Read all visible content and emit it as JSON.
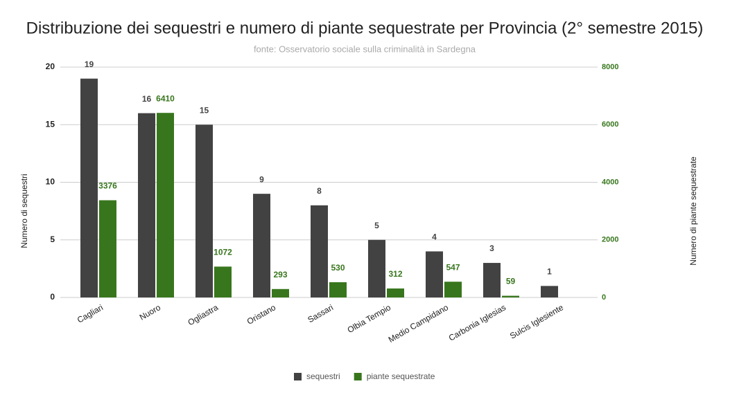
{
  "chart_data": {
    "type": "bar",
    "title": "Distribuzione dei sequestri e numero di piante sequestrate per Provincia (2° semestre 2015)",
    "subtitle": "fonte: Osservatorio sociale sulla criminalità in Sardegna",
    "y_label": "Numero di sequestri",
    "y2_label": "Numero di piante sequestrate",
    "categories": [
      "Cagliari",
      "Nuoro",
      "Ogliastra",
      "Oristano",
      "Sassari",
      "Olbia Tempio",
      "Medio Campidano",
      "Carbonia Iglesias",
      "Sulcis Iglesiente"
    ],
    "series": [
      {
        "name": "sequestri",
        "color": "#424242",
        "values": [
          19,
          16,
          15,
          9,
          8,
          5,
          4,
          3,
          1
        ]
      },
      {
        "name": "piante sequestrate",
        "color": "#38761d",
        "axis": "y2",
        "values": [
          3376,
          6410,
          1072,
          293,
          530,
          312,
          547,
          59,
          null
        ]
      }
    ],
    "ylim": [
      0,
      20
    ],
    "yticks": [
      0,
      5,
      10,
      15,
      20
    ],
    "y2lim": [
      0,
      8000
    ],
    "y2ticks": [
      0,
      2000,
      4000,
      6000,
      8000
    ],
    "grid": true,
    "legend": "bottom"
  }
}
